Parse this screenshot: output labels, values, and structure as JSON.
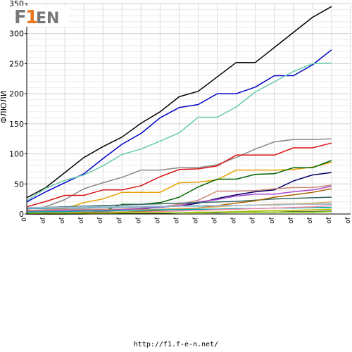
{
  "logo": {
    "text_f": "F",
    "text_1": "1",
    "text_en": "EN"
  },
  "footer": {
    "url": "http://f1.f-e-n.net/"
  },
  "chart_data": {
    "type": "line",
    "title": "",
    "xlabel": "",
    "ylabel": "ФЛЮЛИ",
    "ylim": [
      0,
      350
    ],
    "yticks": [
      0,
      50,
      100,
      150,
      200,
      250,
      300,
      350
    ],
    "x_tick_labels": [
      "0",
      "of",
      "of",
      "of",
      "of",
      "of",
      "of",
      "of",
      "of",
      "of",
      "of",
      "of",
      "of",
      "of",
      "of",
      "of",
      "of",
      "of"
    ],
    "grid": true,
    "series": [
      {
        "color": "#000000",
        "values": [
          27,
          44,
          69,
          94,
          112,
          128,
          151,
          170,
          195,
          204,
          228,
          252,
          252,
          277,
          302,
          327,
          345
        ]
      },
      {
        "color": "#0000cc",
        "values": [
          20,
          37,
          52,
          67,
          92,
          116,
          134,
          160,
          177,
          182,
          200,
          200,
          211,
          230,
          230,
          248,
          273
        ]
      },
      {
        "color": "#66ccaa",
        "values": [
          22,
          43,
          56,
          65,
          80,
          99,
          108,
          121,
          135,
          161,
          161,
          178,
          203,
          220,
          237,
          250,
          251
        ]
      },
      {
        "color": "#888888",
        "values": [
          8,
          12,
          24,
          42,
          52,
          61,
          73,
          73,
          77,
          77,
          82,
          94,
          108,
          120,
          124,
          124,
          125
        ]
      },
      {
        "color": "#dd1111",
        "values": [
          12,
          21,
          31,
          31,
          40,
          40,
          47,
          62,
          74,
          75,
          80,
          98,
          98,
          98,
          110,
          110,
          118
        ]
      },
      {
        "color": "#e8a000",
        "values": [
          5,
          7,
          9,
          19,
          25,
          36,
          36,
          36,
          52,
          53,
          57,
          73,
          73,
          73,
          74,
          78,
          86
        ]
      },
      {
        "color": "#006600",
        "values": [
          3,
          3,
          4,
          4,
          5,
          16,
          16,
          19,
          28,
          45,
          58,
          58,
          66,
          67,
          77,
          77,
          89
        ]
      },
      {
        "color": "#000066",
        "values": [
          2,
          2,
          3,
          4,
          5,
          6,
          8,
          12,
          13,
          18,
          26,
          32,
          37,
          40,
          55,
          65,
          69
        ]
      },
      {
        "color": "#cc8877",
        "values": [
          6,
          7,
          8,
          8,
          8,
          8,
          10,
          12,
          16,
          23,
          38,
          38,
          39,
          42,
          44,
          44,
          48
        ]
      },
      {
        "color": "#aa44cc",
        "values": [
          4,
          5,
          6,
          6,
          6,
          7,
          9,
          11,
          14,
          20,
          24,
          30,
          33,
          33,
          37,
          40,
          46
        ]
      },
      {
        "color": "#336666",
        "values": [
          10,
          11,
          12,
          13,
          14,
          15,
          16,
          17,
          18,
          19,
          20,
          21,
          23,
          25,
          26,
          27,
          28
        ]
      },
      {
        "color": "#aa6600",
        "values": [
          1,
          1,
          2,
          2,
          3,
          3,
          4,
          6,
          8,
          10,
          14,
          18,
          22,
          28,
          32,
          36,
          42
        ]
      },
      {
        "color": "#ddaa66",
        "values": [
          2,
          3,
          3,
          4,
          5,
          6,
          7,
          8,
          9,
          10,
          12,
          14,
          15,
          16,
          17,
          18,
          20
        ]
      },
      {
        "color": "#55aacc",
        "values": [
          9,
          9,
          10,
          10,
          11,
          11,
          12,
          12,
          13,
          13,
          14,
          14,
          15,
          15,
          16,
          16,
          17
        ]
      },
      {
        "color": "#aabbcc",
        "values": [
          11,
          11,
          11,
          12,
          12,
          12,
          13,
          13,
          13,
          14,
          14,
          14,
          15,
          15,
          16,
          16,
          16
        ]
      },
      {
        "color": "#00aaaa",
        "values": [
          3,
          4,
          4,
          5,
          5,
          6,
          6,
          7,
          7,
          8,
          8,
          9,
          9,
          10,
          10,
          11,
          11
        ]
      },
      {
        "color": "#bbbb00",
        "values": [
          0,
          0,
          0,
          1,
          1,
          1,
          1,
          2,
          2,
          3,
          3,
          4,
          5,
          6,
          6,
          7,
          8
        ]
      },
      {
        "color": "#ff88aa",
        "values": [
          0,
          0,
          1,
          1,
          2,
          2,
          3,
          4,
          5,
          6,
          7,
          8,
          9,
          10,
          11,
          12,
          14
        ]
      },
      {
        "color": "#444444",
        "values": [
          0,
          0,
          0,
          0,
          1,
          1,
          1,
          1,
          2,
          2,
          2,
          3,
          3,
          3,
          4,
          4,
          5
        ]
      },
      {
        "color": "#88cc00",
        "values": [
          1,
          1,
          1,
          1,
          1,
          2,
          2,
          2,
          2,
          2,
          3,
          3,
          3,
          3,
          3,
          3,
          4
        ]
      }
    ]
  }
}
